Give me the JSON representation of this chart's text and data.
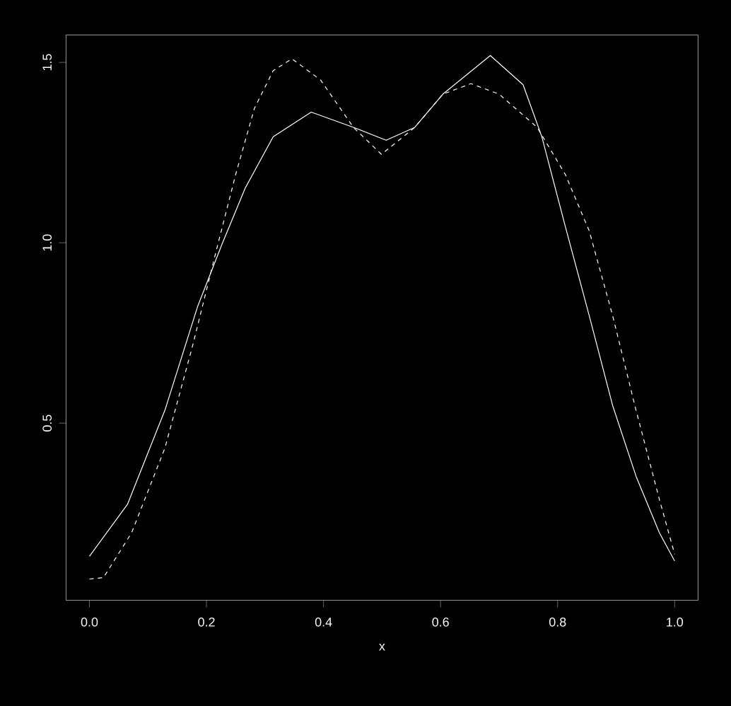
{
  "chart_data": {
    "type": "line",
    "xlabel": "x",
    "xlim": [
      -0.04,
      1.04
    ],
    "ylim": [
      0.009,
      1.576
    ],
    "xticks": [
      {
        "value": 0,
        "label": "0.0"
      },
      0.2,
      0.4,
      0.6,
      0.8,
      {
        "value": 1,
        "label": "1.0"
      }
    ],
    "yticks": [
      0.5,
      {
        "value": 1,
        "label": "1.0"
      },
      1.5
    ],
    "series": [
      {
        "color": "#ffffff",
        "line_style": "solid",
        "x": [
          0,
          0.065,
          0.129,
          0.185,
          0.226,
          0.266,
          0.314,
          0.379,
          0.451,
          0.507,
          0.556,
          0.604,
          0.685,
          0.741,
          0.773,
          0.813,
          0.854,
          0.894,
          0.934,
          0.974,
          1.0
        ],
        "values": [
          0.131,
          0.275,
          0.536,
          0.824,
          0.994,
          1.151,
          1.294,
          1.362,
          1.32,
          1.284,
          1.32,
          1.412,
          1.519,
          1.438,
          1.294,
          1.046,
          0.798,
          0.549,
          0.353,
          0.196,
          0.118
        ]
      },
      {
        "color": "#ffffff",
        "line_style": "dashed",
        "x": [
          0,
          0.024,
          0.072,
          0.129,
          0.177,
          0.217,
          0.25,
          0.282,
          0.314,
          0.346,
          0.395,
          0.451,
          0.499,
          0.556,
          0.604,
          0.652,
          0.7,
          0.765,
          0.813,
          0.854,
          0.894,
          0.934,
          0.974,
          1.0
        ],
        "values": [
          0.068,
          0.072,
          0.196,
          0.431,
          0.719,
          0.98,
          1.19,
          1.373,
          1.477,
          1.51,
          1.451,
          1.32,
          1.245,
          1.32,
          1.412,
          1.441,
          1.412,
          1.32,
          1.19,
          1.033,
          0.798,
          0.536,
          0.288,
          0.137
        ]
      }
    ]
  }
}
